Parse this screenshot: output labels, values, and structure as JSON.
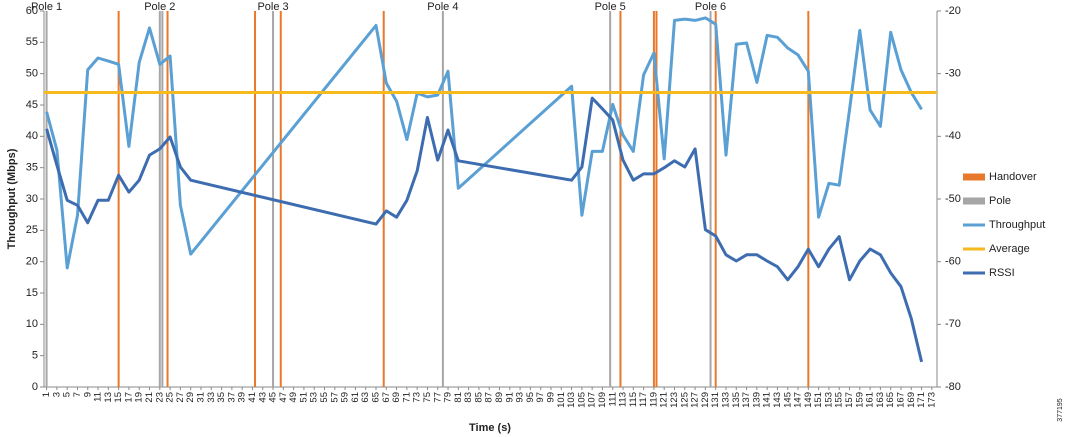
{
  "chart_data": {
    "type": "line",
    "x_label": "Time (s)",
    "y_label": "Throughput (Mbps)",
    "side_note": "377195",
    "x": [
      1,
      3,
      5,
      7,
      9,
      11,
      13,
      15,
      17,
      19,
      21,
      23,
      25,
      27,
      29,
      65,
      67,
      69,
      71,
      73,
      75,
      77,
      79,
      81,
      103,
      105,
      107,
      109,
      111,
      113,
      115,
      117,
      119,
      121,
      123,
      125,
      127,
      129,
      131,
      133,
      135,
      137,
      139,
      141,
      143,
      145,
      147,
      149,
      151,
      153,
      155,
      157,
      159,
      161,
      163,
      165,
      167,
      169,
      171
    ],
    "xlim": [
      0.5,
      174
    ],
    "xticks": [
      1,
      3,
      5,
      7,
      9,
      11,
      13,
      15,
      17,
      19,
      21,
      23,
      25,
      27,
      29,
      31,
      33,
      35,
      37,
      39,
      41,
      43,
      45,
      47,
      49,
      51,
      53,
      55,
      57,
      59,
      61,
      63,
      65,
      67,
      69,
      71,
      73,
      75,
      77,
      79,
      81,
      83,
      85,
      87,
      89,
      91,
      93,
      95,
      97,
      99,
      101,
      103,
      105,
      107,
      109,
      111,
      113,
      115,
      117,
      119,
      121,
      123,
      125,
      127,
      129,
      131,
      133,
      135,
      137,
      139,
      141,
      143,
      145,
      147,
      149,
      151,
      153,
      155,
      157,
      159,
      161,
      163,
      165,
      167,
      169,
      171,
      173
    ],
    "ylim": [
      0,
      60
    ],
    "yticks": [
      0,
      5,
      10,
      15,
      20,
      25,
      30,
      35,
      40,
      45,
      50,
      55,
      60
    ],
    "y2lim": [
      -80,
      -20
    ],
    "y2ticks": [
      -80,
      -70,
      -60,
      -50,
      -40,
      -30,
      -20
    ],
    "series": [
      {
        "name": "Handover",
        "color": "#e8782a",
        "x": [
          15,
          24.5,
          41.5,
          46.5,
          66.5,
          112.5,
          119,
          119.5,
          131,
          149
        ]
      },
      {
        "name": "Pole",
        "color": "#a6a6a6",
        "x": [
          1,
          23,
          23.5,
          45,
          78,
          110.5,
          130
        ]
      },
      {
        "name": "Throughput",
        "color": "#5ba0d4",
        "values": [
          43.9,
          37.8,
          19,
          27.4,
          50.6,
          52.5,
          52,
          51.5,
          38.4,
          51.8,
          57.3,
          51.5,
          52.8,
          29,
          21.2,
          57.7,
          48.5,
          45.6,
          39.5,
          46.9,
          46.3,
          46.6,
          50.4,
          31.7,
          48,
          27.4,
          37.6,
          37.6,
          45.1,
          40.2,
          37.6,
          49.8,
          53.3,
          36.4,
          58.5,
          58.7,
          58.5,
          58.9,
          57.9,
          37,
          54.7,
          54.9,
          48.6,
          56.1,
          55.8,
          54.1,
          53,
          50.4,
          27.1,
          32.5,
          32.2,
          44.2,
          56.9,
          44.2,
          41.6,
          56.6,
          50.6,
          47,
          44.3
        ]
      },
      {
        "name": "Average",
        "color": "#f6b91e",
        "value": 47
      },
      {
        "name": "RSSI",
        "color": "#3d6db0",
        "axis": "y2",
        "values": [
          -38.8,
          -44.6,
          -50.2,
          -51,
          -53.8,
          -50.2,
          -50.2,
          -46.2,
          -48.9,
          -47,
          -43,
          -42,
          -40.1,
          -44.9,
          -47,
          -54,
          -51.9,
          -52.9,
          -50.2,
          -45.5,
          -37,
          -43.8,
          -39,
          -43.9,
          -47,
          -44.9,
          -33.9,
          -35.6,
          -37.4,
          -43.8,
          -47,
          -46,
          -46,
          -45,
          -43.9,
          -44.9,
          -42,
          -54.9,
          -55.9,
          -58.9,
          -59.9,
          -58.9,
          -58.9,
          -59.9,
          -60.8,
          -62.9,
          -60.8,
          -58,
          -60.8,
          -58,
          -56,
          -62.9,
          -59.9,
          -58,
          -58.9,
          -61.8,
          -64,
          -69.1,
          -76
        ]
      }
    ],
    "pole_labels": [
      {
        "x": 1,
        "label": "Pole 1"
      },
      {
        "x": 23,
        "label": "Pole 2"
      },
      {
        "x": 45,
        "label": "Pole 3"
      },
      {
        "x": 78,
        "label": "Pole 4"
      },
      {
        "x": 110.5,
        "label": "Pole 5"
      },
      {
        "x": 130,
        "label": "Pole 6"
      }
    ],
    "legend": "right"
  }
}
